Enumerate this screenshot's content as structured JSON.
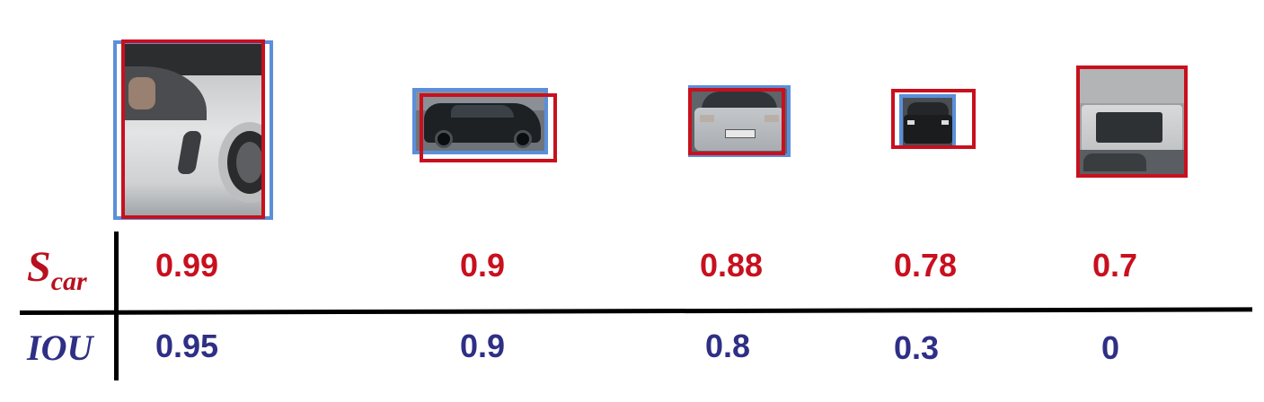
{
  "row_labels": {
    "score": {
      "symbol": "S",
      "subscript": "car"
    },
    "iou": "IOU"
  },
  "detections": [
    {
      "score": "0.99",
      "iou": "0.95",
      "content": "white car side, close-up"
    },
    {
      "score": "0.9",
      "iou": "0.9",
      "content": "dark sedan side view"
    },
    {
      "score": "0.88",
      "iou": "0.8",
      "content": "silver sedan rear view"
    },
    {
      "score": "0.78",
      "iou": "0.3",
      "content": "small dark car rear view"
    },
    {
      "score": "0.7",
      "iou": "0",
      "content": "white van rear, no overlap"
    }
  ],
  "colors": {
    "ground_truth_box": "#5b8fd9",
    "predicted_box": "#c8101e",
    "score_text": "#c8101e",
    "iou_text": "#2e2f85"
  }
}
